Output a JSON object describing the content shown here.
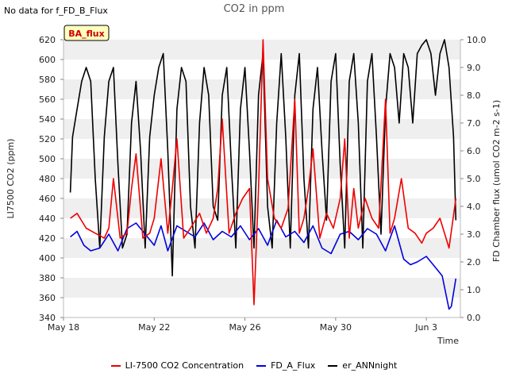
{
  "header": {
    "note": "No data for f_FD_B_Flux",
    "title": "CO2 in ppm"
  },
  "chart_data": {
    "type": "line",
    "title": "CO2 in ppm",
    "xlabel": "Time",
    "ylabel_left": "LI7500 CO2 (ppm)",
    "ylabel_right": "FD Chamber flux (umol CO2 m-2 s-1)",
    "x_ticks": [
      "May 18",
      "May 22",
      "May 26",
      "May 30",
      "Jun 3"
    ],
    "x_range_days": [
      0,
      17.5
    ],
    "ylim_left": [
      340,
      620
    ],
    "ylim_right": [
      0.0,
      10.0
    ],
    "y_ticks_left": [
      340,
      360,
      380,
      400,
      420,
      440,
      460,
      480,
      500,
      520,
      540,
      560,
      580,
      600,
      620
    ],
    "y_ticks_right": [
      "0.0",
      "1.0",
      "2.0",
      "3.0",
      "4.0",
      "5.0",
      "6.0",
      "7.0",
      "8.0",
      "9.0",
      "10.0"
    ],
    "grid": "horizontal bands",
    "badge": "BA_flux",
    "colors": {
      "red": "#ee0000",
      "blue": "#0000dd",
      "black": "#000000"
    },
    "legend": [
      {
        "name": "LI-7500 CO2 Concentration",
        "color": "#ee0000"
      },
      {
        "name": "FD_A_Flux",
        "color": "#0000dd"
      },
      {
        "name": "er_ANNnight",
        "color": "#000000"
      }
    ],
    "series": [
      {
        "name": "LI-7500 CO2 Concentration",
        "axis": "left",
        "x": [
          0.3,
          0.6,
          1.0,
          1.4,
          1.8,
          2.0,
          2.2,
          2.5,
          2.8,
          3.0,
          3.2,
          3.5,
          3.8,
          4.0,
          4.3,
          4.6,
          4.8,
          5.0,
          5.3,
          5.6,
          6.0,
          6.3,
          6.6,
          6.8,
          7.0,
          7.3,
          7.6,
          7.9,
          8.2,
          8.4,
          8.6,
          8.8,
          9.0,
          9.3,
          9.6,
          9.9,
          10.2,
          10.4,
          10.6,
          10.8,
          11.0,
          11.3,
          11.6,
          11.9,
          12.2,
          12.4,
          12.6,
          12.8,
          13.0,
          13.3,
          13.6,
          13.9,
          14.2,
          14.4,
          14.6,
          14.9,
          15.2,
          15.5,
          15.8,
          16.0,
          16.3,
          16.6,
          17.0,
          17.3
        ],
        "values": [
          440,
          445,
          430,
          425,
          420,
          430,
          480,
          420,
          425,
          470,
          505,
          420,
          425,
          440,
          500,
          425,
          470,
          520,
          420,
          430,
          445,
          425,
          440,
          470,
          540,
          425,
          445,
          460,
          470,
          353,
          470,
          620,
          480,
          440,
          430,
          450,
          560,
          425,
          440,
          470,
          510,
          420,
          445,
          430,
          460,
          520,
          420,
          470,
          430,
          460,
          440,
          430,
          560,
          425,
          440,
          480,
          430,
          425,
          415,
          425,
          430,
          440,
          410,
          460
        ]
      },
      {
        "name": "FD_A_Flux",
        "axis": "right",
        "x": [
          0.3,
          0.6,
          0.9,
          1.2,
          1.6,
          2.0,
          2.4,
          2.8,
          3.2,
          3.6,
          4.0,
          4.3,
          4.6,
          5.0,
          5.4,
          5.8,
          6.2,
          6.6,
          7.0,
          7.4,
          7.8,
          8.2,
          8.6,
          9.0,
          9.4,
          9.8,
          10.2,
          10.6,
          11.0,
          11.4,
          11.8,
          12.2,
          12.6,
          13.0,
          13.4,
          13.8,
          14.2,
          14.6,
          15.0,
          15.3,
          15.6,
          16.0,
          16.4,
          16.7,
          17.0,
          17.1,
          17.3
        ],
        "values": [
          2.9,
          3.1,
          2.6,
          2.4,
          2.5,
          3.0,
          2.4,
          3.2,
          3.4,
          3.0,
          2.6,
          3.3,
          2.4,
          3.3,
          3.1,
          2.9,
          3.4,
          2.8,
          3.1,
          2.9,
          3.3,
          2.8,
          3.2,
          2.6,
          3.5,
          2.9,
          3.1,
          2.7,
          3.3,
          2.5,
          2.3,
          3.0,
          3.1,
          2.8,
          3.2,
          3.0,
          2.4,
          3.3,
          2.1,
          1.9,
          2.0,
          2.2,
          1.8,
          1.5,
          0.3,
          0.4,
          1.4
        ]
      },
      {
        "name": "er_ANNnight",
        "axis": "right",
        "x": [
          0.3,
          0.4,
          0.6,
          0.8,
          1.0,
          1.2,
          1.4,
          1.6,
          1.8,
          2.0,
          2.2,
          2.4,
          2.6,
          2.8,
          3.0,
          3.2,
          3.4,
          3.6,
          3.8,
          4.0,
          4.2,
          4.4,
          4.6,
          4.8,
          5.0,
          5.2,
          5.4,
          5.6,
          5.8,
          6.0,
          6.2,
          6.4,
          6.6,
          6.8,
          7.0,
          7.2,
          7.4,
          7.6,
          7.8,
          8.0,
          8.2,
          8.4,
          8.6,
          8.8,
          9.0,
          9.2,
          9.4,
          9.6,
          9.8,
          10.0,
          10.2,
          10.4,
          10.6,
          10.8,
          11.0,
          11.2,
          11.4,
          11.6,
          11.8,
          12.0,
          12.2,
          12.4,
          12.6,
          12.8,
          13.0,
          13.2,
          13.4,
          13.6,
          13.8,
          14.0,
          14.2,
          14.4,
          14.6,
          14.8,
          15.0,
          15.2,
          15.4,
          15.6,
          15.8,
          16.0,
          16.2,
          16.4,
          16.6,
          16.8,
          17.0,
          17.2,
          17.3
        ],
        "values": [
          4.5,
          6.5,
          7.5,
          8.5,
          9.0,
          8.5,
          5.0,
          2.5,
          6.5,
          8.5,
          9.0,
          5.5,
          2.5,
          3.0,
          7.0,
          8.5,
          6.0,
          2.5,
          6.5,
          8.0,
          9.0,
          9.5,
          6.0,
          1.5,
          7.5,
          9.0,
          8.5,
          4.0,
          2.5,
          7.0,
          9.0,
          8.0,
          4.0,
          3.5,
          8.0,
          9.0,
          5.5,
          2.5,
          7.5,
          9.0,
          6.0,
          2.5,
          8.0,
          9.5,
          4.0,
          2.5,
          7.0,
          9.5,
          6.5,
          2.5,
          8.0,
          9.5,
          5.0,
          2.5,
          7.5,
          9.0,
          6.0,
          3.5,
          8.5,
          9.5,
          5.5,
          2.5,
          8.5,
          9.5,
          7.0,
          2.5,
          8.5,
          9.5,
          6.5,
          3.0,
          7.5,
          9.5,
          9.0,
          7.0,
          9.5,
          9.0,
          7.0,
          9.5,
          9.8,
          10.0,
          9.5,
          8.0,
          9.5,
          10.0,
          9.0,
          6.5,
          3.5
        ]
      }
    ]
  }
}
